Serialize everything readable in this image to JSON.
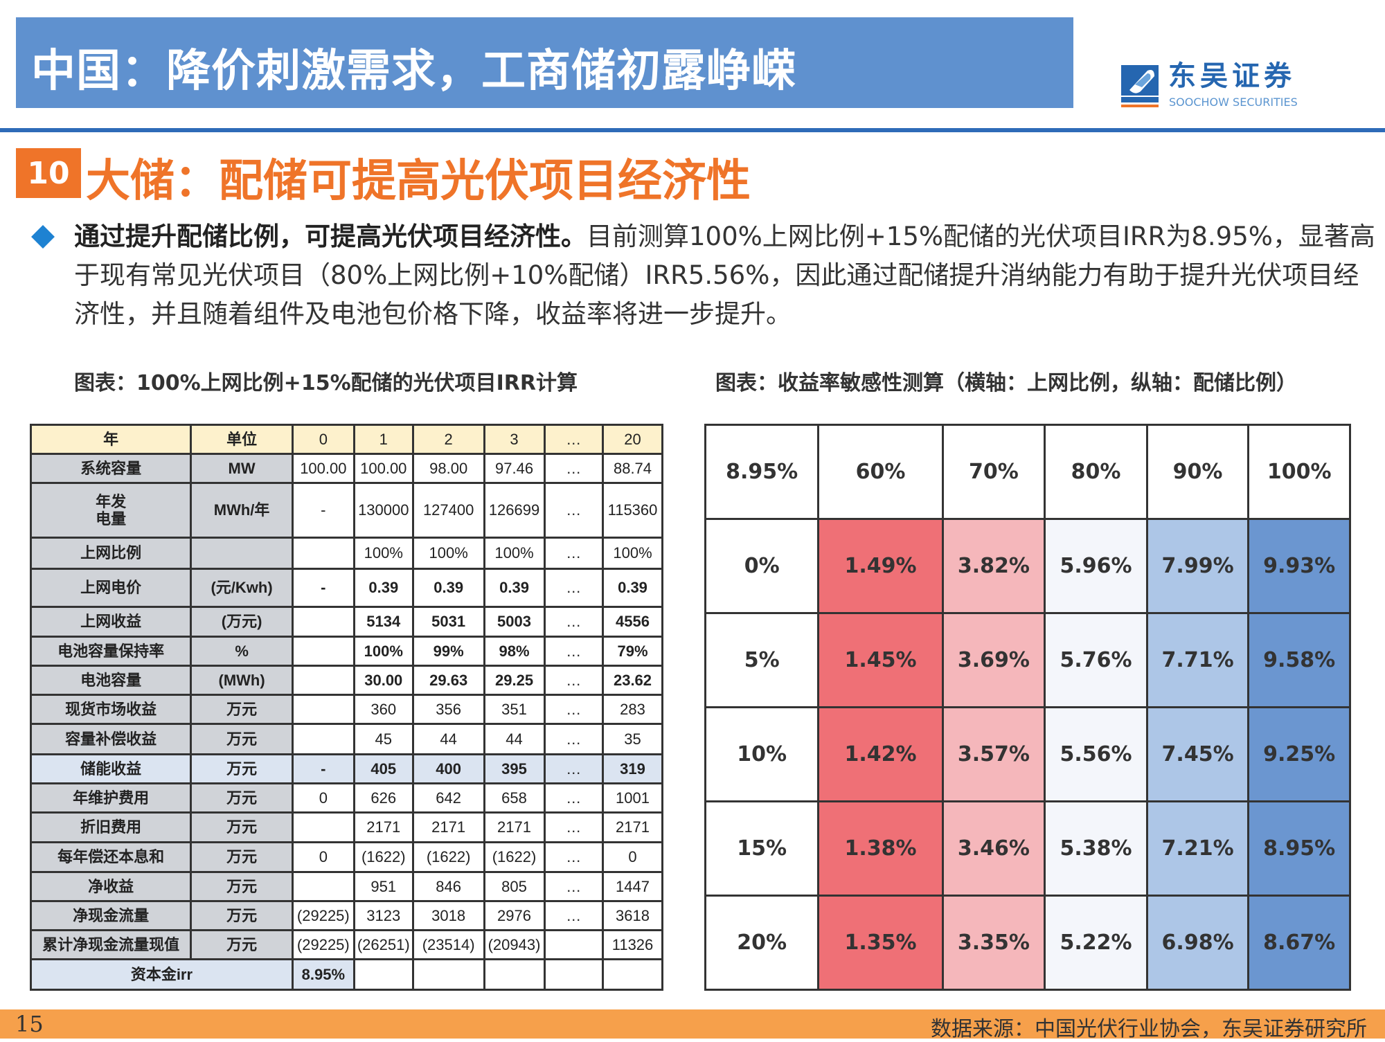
{
  "header": {
    "title": "中国：降价刺激需求，工商储初露峥嵘"
  },
  "logo": {
    "cn": "东吴证券",
    "en": "SOOCHOW SECURITIES",
    "mark": "SCS"
  },
  "section": {
    "number": "10",
    "title": "大储：配储可提高光伏项目经济性"
  },
  "paragraph": {
    "bold": "通过提升配储比例，可提高光伏项目经济性。",
    "rest": "目前测算100%上网比例+15%配储的光伏项目IRR为8.95%，显著高于现有常见光伏项目（80%上网比例+10%配储）IRR5.56%，因此通过配储提升消纳能力有助于提升光伏项目经济性，并且随着组件及电池包价格下降，收益率将进一步提升。"
  },
  "captions": {
    "left": "图表：100%上网比例+15%配储的光伏项目IRR计算",
    "right": "图表：收益率敏感性测算（横轴：上网比例，纵轴：配储比例）"
  },
  "irr_table": {
    "header": [
      "年",
      "单位",
      "0",
      "1",
      "2",
      "3",
      "…",
      "20"
    ],
    "rows": [
      {
        "cells": [
          "系统容量",
          "MW",
          "100.00",
          "100.00",
          "98.00",
          "97.46",
          "…",
          "88.74"
        ]
      },
      {
        "cells": [
          "年发\n电量",
          "MWh/年",
          "-",
          "130000",
          "127400",
          "126699",
          "…",
          "115360"
        ]
      },
      {
        "cells": [
          "上网比例",
          "",
          "",
          "100%",
          "100%",
          "100%",
          "…",
          "100%"
        ]
      },
      {
        "cells": [
          "上网电价",
          "(元/Kwh)",
          "-",
          "0.39",
          "0.39",
          "0.39",
          "…",
          "0.39"
        ],
        "bold": true
      },
      {
        "cells": [
          "上网收益",
          "(万元)",
          "",
          "5134",
          "5031",
          "5003",
          "…",
          "4556"
        ],
        "bold": true
      },
      {
        "cells": [
          "电池容量保持率",
          "%",
          "",
          "100%",
          "99%",
          "98%",
          "…",
          "79%"
        ],
        "bold": true
      },
      {
        "cells": [
          "电池容量",
          "(MWh)",
          "",
          "30.00",
          "29.63",
          "29.25",
          "…",
          "23.62"
        ],
        "bold": true
      },
      {
        "cells": [
          "现货市场收益",
          "万元",
          "",
          "360",
          "356",
          "351",
          "…",
          "283"
        ]
      },
      {
        "cells": [
          "容量补偿收益",
          "万元",
          "",
          "45",
          "44",
          "44",
          "…",
          "35"
        ]
      },
      {
        "cells": [
          "储能收益",
          "万元",
          "-",
          "405",
          "400",
          "395",
          "…",
          "319"
        ],
        "bold": true,
        "highlight": true
      },
      {
        "cells": [
          "年维护费用",
          "万元",
          "0",
          "626",
          "642",
          "658",
          "…",
          "1001"
        ]
      },
      {
        "cells": [
          "折旧费用",
          "万元",
          "",
          "2171",
          "2171",
          "2171",
          "…",
          "2171"
        ]
      },
      {
        "cells": [
          "每年偿还本息和",
          "万元",
          "0",
          "(1622)",
          "(1622)",
          "(1622)",
          "…",
          "0"
        ]
      },
      {
        "cells": [
          "净收益",
          "万元",
          "",
          "951",
          "846",
          "805",
          "…",
          "1447"
        ]
      },
      {
        "cells": [
          "净现金流量",
          "万元",
          "(29225)",
          "3123",
          "3018",
          "2976",
          "…",
          "3618"
        ]
      },
      {
        "cells": [
          "累计净现金流量现值",
          "万元",
          "(29225)",
          "(26251)",
          "(23514)",
          "(20943)",
          "",
          "11326"
        ]
      }
    ],
    "irr_label": "资本金irr",
    "irr_value": "8.95%"
  },
  "sensitivity": {
    "corner": "8.95%",
    "columns": [
      "60%",
      "70%",
      "80%",
      "90%",
      "100%"
    ],
    "column_colors": [
      "#ef7076",
      "#f5b7bb",
      "#f4f6fb",
      "#adc6e7",
      "#6b96d0"
    ],
    "rows": [
      {
        "label": "0%",
        "values": [
          "1.49%",
          "3.82%",
          "5.96%",
          "7.99%",
          "9.93%"
        ]
      },
      {
        "label": "5%",
        "values": [
          "1.45%",
          "3.69%",
          "5.76%",
          "7.71%",
          "9.58%"
        ]
      },
      {
        "label": "10%",
        "values": [
          "1.42%",
          "3.57%",
          "5.56%",
          "7.45%",
          "9.25%"
        ]
      },
      {
        "label": "15%",
        "values": [
          "1.38%",
          "3.46%",
          "5.38%",
          "7.21%",
          "8.95%"
        ]
      },
      {
        "label": "20%",
        "values": [
          "1.35%",
          "3.35%",
          "5.22%",
          "6.98%",
          "8.67%"
        ]
      }
    ]
  },
  "footer": {
    "page": "15",
    "source": "数据来源：中国光伏行业协会，东吴证券研究所"
  }
}
